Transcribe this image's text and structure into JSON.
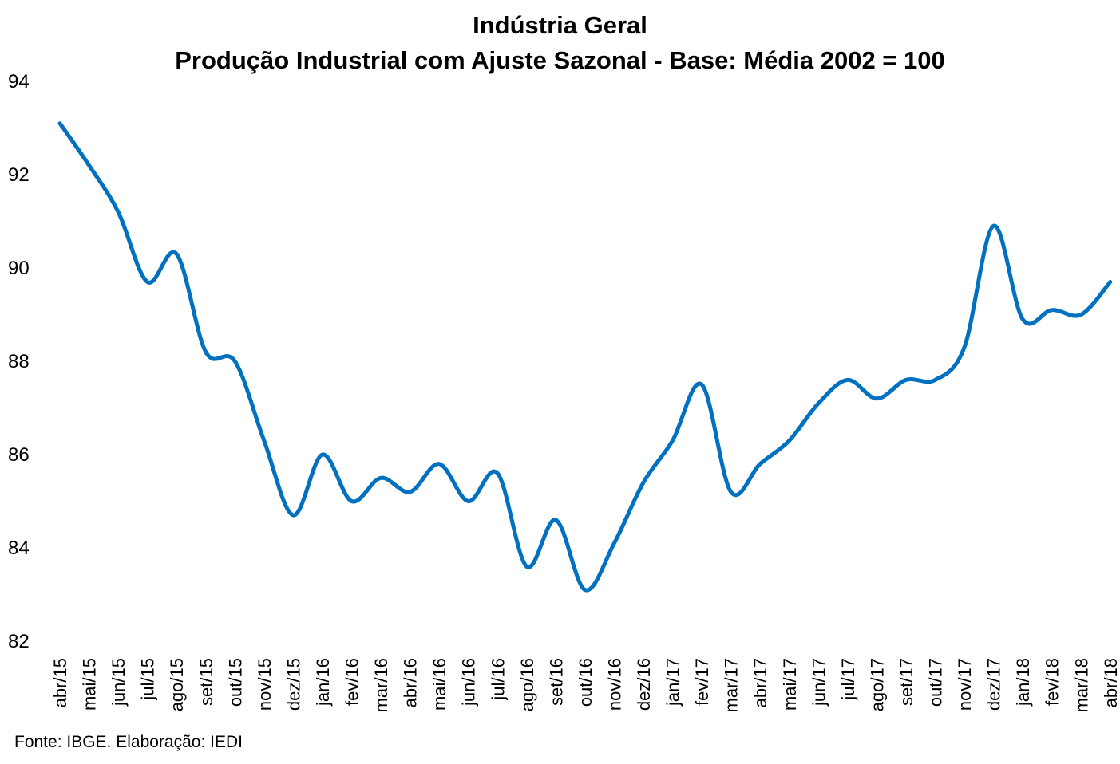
{
  "chart_data": {
    "type": "line",
    "title": "Indústria Geral",
    "subtitle": "Produção Industrial com Ajuste Sazonal - Base: Média 2002 = 100",
    "xlabel": "",
    "ylabel": "",
    "ylim": [
      82,
      94
    ],
    "yticks": [
      "82",
      "84",
      "86",
      "88",
      "90",
      "92",
      "94"
    ],
    "grid": false,
    "legend": "none",
    "categories": [
      "abr/15",
      "mai/15",
      "jun/15",
      "jul/15",
      "ago/15",
      "set/15",
      "out/15",
      "nov/15",
      "dez/15",
      "jan/16",
      "fev/16",
      "mar/16",
      "abr/16",
      "mai/16",
      "jun/16",
      "jul/16",
      "ago/16",
      "set/16",
      "out/16",
      "nov/16",
      "dez/16",
      "jan/17",
      "fev/17",
      "mar/17",
      "abr/17",
      "mai/17",
      "jun/17",
      "jul/17",
      "ago/17",
      "set/17",
      "out/17",
      "nov/17",
      "dez/17",
      "jan/18",
      "fev/18",
      "mar/18",
      "abr/18"
    ],
    "series": [
      {
        "name": "",
        "color": "#0070C0",
        "values": [
          93.1,
          92.2,
          91.2,
          89.7,
          90.3,
          88.2,
          88.0,
          86.3,
          84.7,
          86.0,
          85.0,
          85.5,
          85.2,
          85.8,
          85.0,
          85.6,
          83.6,
          84.6,
          83.1,
          84.1,
          85.4,
          86.3,
          87.5,
          85.2,
          85.8,
          86.3,
          87.1,
          87.6,
          87.2,
          87.6,
          87.6,
          88.3,
          90.9,
          88.9,
          89.1,
          89.0,
          89.7
        ]
      }
    ]
  },
  "footer": {
    "source": "Fonte: IBGE. Elaboração: IEDI"
  }
}
